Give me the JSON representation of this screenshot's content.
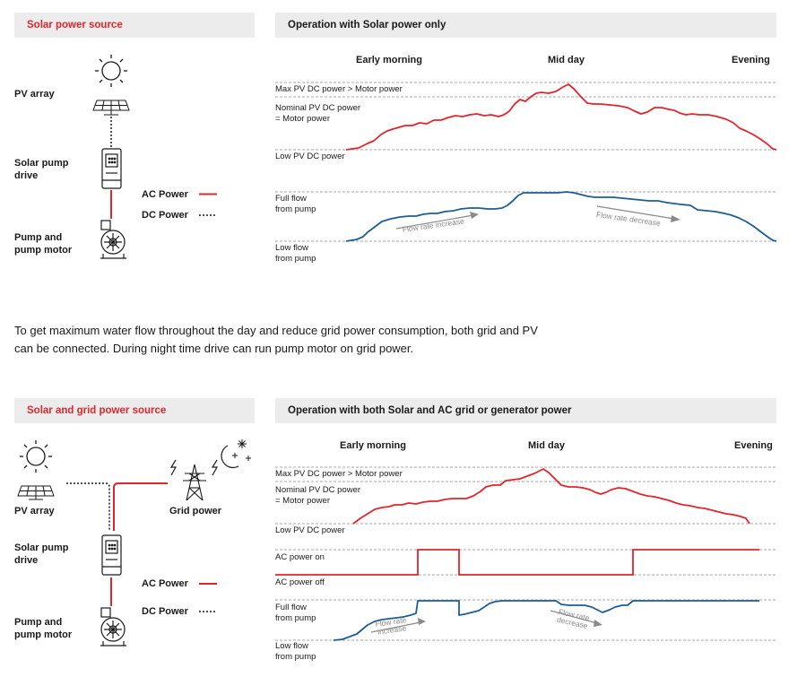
{
  "section1": {
    "source_title": "Solar power source",
    "chart_title": "Operation with Solar power only",
    "pv_array": "PV array",
    "drive": [
      "Solar pump",
      "drive"
    ],
    "motor": [
      "Pump and",
      "pump motor"
    ],
    "ac_power": "AC Power",
    "dc_power": "DC Power",
    "times": [
      "Early morning",
      "Mid day",
      "Evening"
    ],
    "y_labels": {
      "max": "Max PV DC power > Motor power",
      "nominal": [
        "Nominal PV DC power",
        "= Motor power"
      ],
      "low": "Low PV DC power",
      "full": [
        "Full flow",
        "from pump"
      ],
      "lowflow": [
        "Low flow",
        "from pump"
      ]
    },
    "annotations": {
      "increase": "Flow rate increase",
      "decrease": "Flow rate decrease"
    }
  },
  "paragraph": [
    "To get maximum water flow throughout the day and reduce grid power consumption, both grid and PV",
    "can be connected. During night time drive can run pump motor on grid power."
  ],
  "section2": {
    "source_title": "Solar and grid power source",
    "chart_title": "Operation with both Solar and AC grid or generator power",
    "pv_array": "PV array",
    "grid_power": "Grid power",
    "drive": [
      "Solar pump",
      "drive"
    ],
    "motor": [
      "Pump and",
      "pump motor"
    ],
    "ac_power": "AC Power",
    "dc_power": "DC Power",
    "times": [
      "Early morning",
      "Mid day",
      "Evening"
    ],
    "y_labels": {
      "max": "Max PV DC power > Motor power",
      "nominal": [
        "Nominal PV DC power",
        "= Motor power"
      ],
      "low": "Low PV DC power",
      "ac_on": "AC power on",
      "ac_off": "AC power off",
      "full": [
        "Full flow",
        "from pump"
      ],
      "lowflow": [
        "Low flow",
        "from pump"
      ]
    },
    "annotations": {
      "increase": [
        "Flow rate",
        "increase"
      ],
      "decrease": [
        "Flow rate",
        "decrease"
      ]
    }
  },
  "colors": {
    "red": "#e3242b",
    "blue": "#1b5e96",
    "grey": "#8a8a8a",
    "header_bg": "#ececec"
  }
}
